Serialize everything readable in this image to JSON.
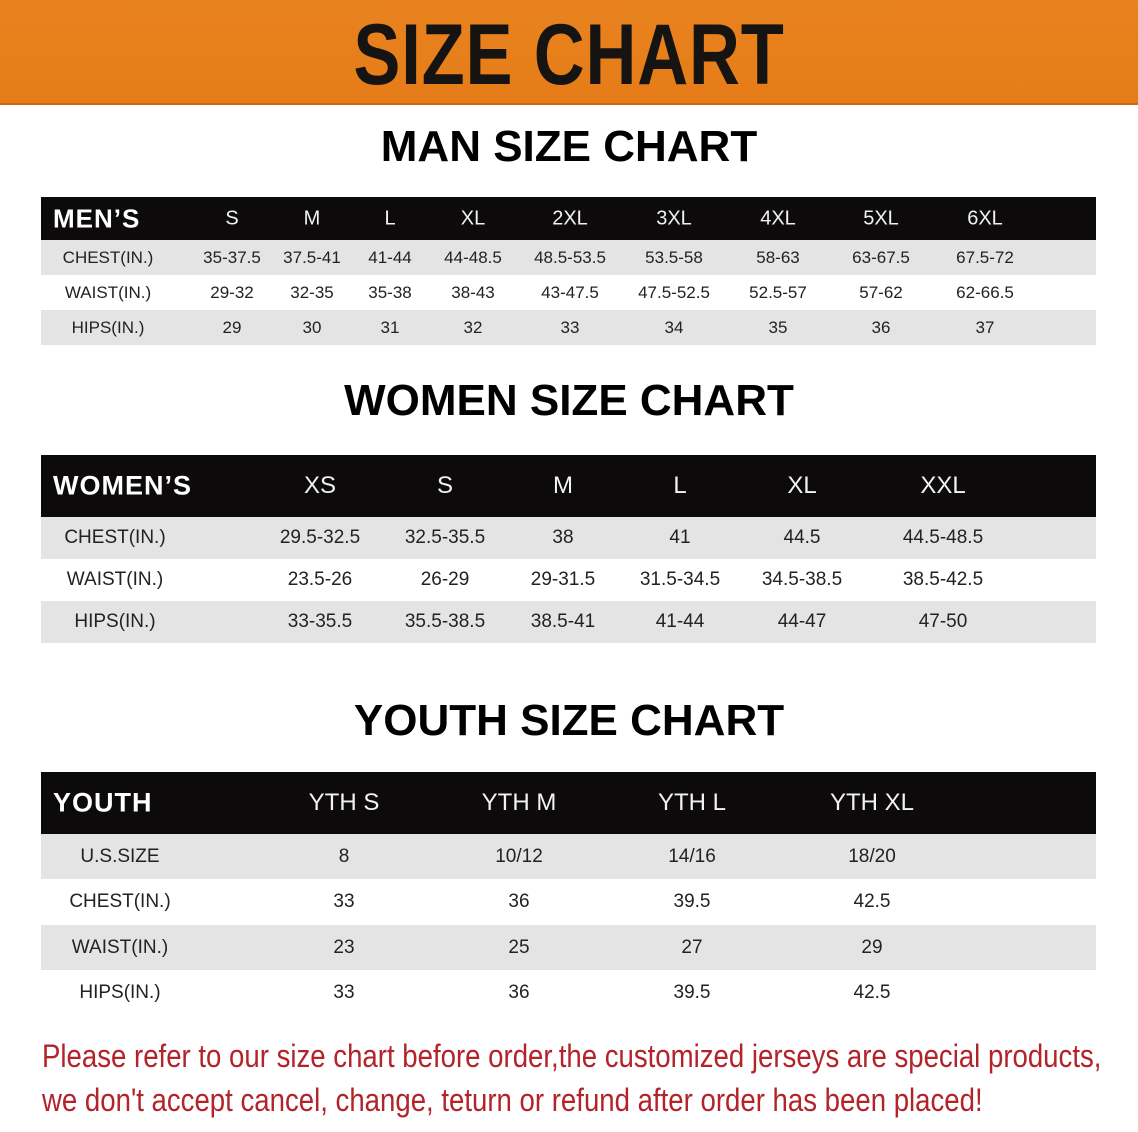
{
  "banner": {
    "title": "SIZE CHART",
    "color": "#E8801E"
  },
  "men": {
    "title": "MAN SIZE CHART",
    "header_label": "MEN’S",
    "sizes": [
      "S",
      "M",
      "L",
      "XL",
      "2XL",
      "3XL",
      "4XL",
      "5XL",
      "6XL"
    ],
    "rows": [
      {
        "label": "CHEST(IN.)",
        "values": [
          "35-37.5",
          "37.5-41",
          "41-44",
          "44-48.5",
          "48.5-53.5",
          "53.5-58",
          "58-63",
          "63-67.5",
          "67.5-72"
        ]
      },
      {
        "label": "WAIST(IN.)",
        "values": [
          "29-32",
          "32-35",
          "35-38",
          "38-43",
          "43-47.5",
          "47.5-52.5",
          "52.5-57",
          "57-62",
          "62-66.5"
        ]
      },
      {
        "label": "HIPS(IN.)",
        "values": [
          "29",
          "30",
          "31",
          "32",
          "33",
          "34",
          "35",
          "36",
          "37"
        ]
      }
    ]
  },
  "women": {
    "title": "WOMEN SIZE CHART",
    "header_label": "WOMEN’S",
    "sizes": [
      "XS",
      "S",
      "M",
      "L",
      "XL",
      "XXL"
    ],
    "rows": [
      {
        "label": "CHEST(IN.)",
        "values": [
          "29.5-32.5",
          "32.5-35.5",
          "38",
          "41",
          "44.5",
          "44.5-48.5"
        ]
      },
      {
        "label": "WAIST(IN.)",
        "values": [
          "23.5-26",
          "26-29",
          "29-31.5",
          "31.5-34.5",
          "34.5-38.5",
          "38.5-42.5"
        ]
      },
      {
        "label": "HIPS(IN.)",
        "values": [
          "33-35.5",
          "35.5-38.5",
          "38.5-41",
          "41-44",
          "44-47",
          "47-50"
        ]
      }
    ]
  },
  "youth": {
    "title": "YOUTH SIZE CHART",
    "header_label": "YOUTH",
    "sizes": [
      "YTH S",
      "YTH M",
      "YTH L",
      "YTH XL"
    ],
    "rows": [
      {
        "label": "U.S.SIZE",
        "values": [
          "8",
          "10/12",
          "14/16",
          "18/20"
        ]
      },
      {
        "label": "CHEST(IN.)",
        "values": [
          "33",
          "36",
          "39.5",
          "42.5"
        ]
      },
      {
        "label": "WAIST(IN.)",
        "values": [
          "23",
          "25",
          "27",
          "29"
        ]
      },
      {
        "label": "HIPS(IN.)",
        "values": [
          "33",
          "36",
          "39.5",
          "42.5"
        ]
      }
    ]
  },
  "notice": {
    "line1": "Please refer to our size chart before order,the customized jerseys are special products,",
    "line2": "we don't accept cancel, change, teturn or refund after order has been placed!",
    "color": "#B3232A"
  }
}
